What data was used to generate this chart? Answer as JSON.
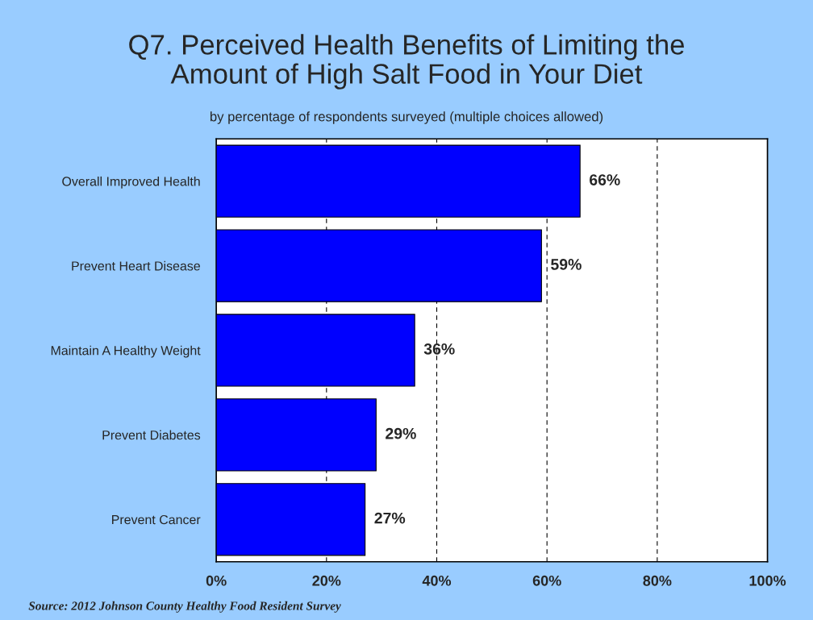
{
  "chart_data": {
    "type": "bar",
    "orientation": "horizontal",
    "title": "Q7. Perceived Health Benefits of Limiting the\nAmount of High Salt Food in Your Diet",
    "subtitle": "by percentage of respondents surveyed (multiple choices allowed)",
    "categories": [
      "Overall Improved Health",
      "Prevent Heart Disease",
      "Maintain A Healthy Weight",
      "Prevent Diabetes",
      "Prevent Cancer"
    ],
    "values": [
      66,
      59,
      36,
      29,
      27
    ],
    "value_labels": [
      "66%",
      "59%",
      "36%",
      "29%",
      "27%"
    ],
    "color": "#0000ff",
    "xlim": [
      0,
      100
    ],
    "xticks": [
      {
        "value": 0,
        "label": "0%"
      },
      {
        "value": 20,
        "label": "20%"
      },
      {
        "value": 40,
        "label": "40%"
      },
      {
        "value": 60,
        "label": "60%"
      },
      {
        "value": 80,
        "label": "80%"
      },
      {
        "value": 100,
        "label": "100%"
      }
    ],
    "grid": "x",
    "line_style": "dashed",
    "annotations": [
      "Source: 2012 Johnson County Healthy Food Resident Survey"
    ]
  }
}
